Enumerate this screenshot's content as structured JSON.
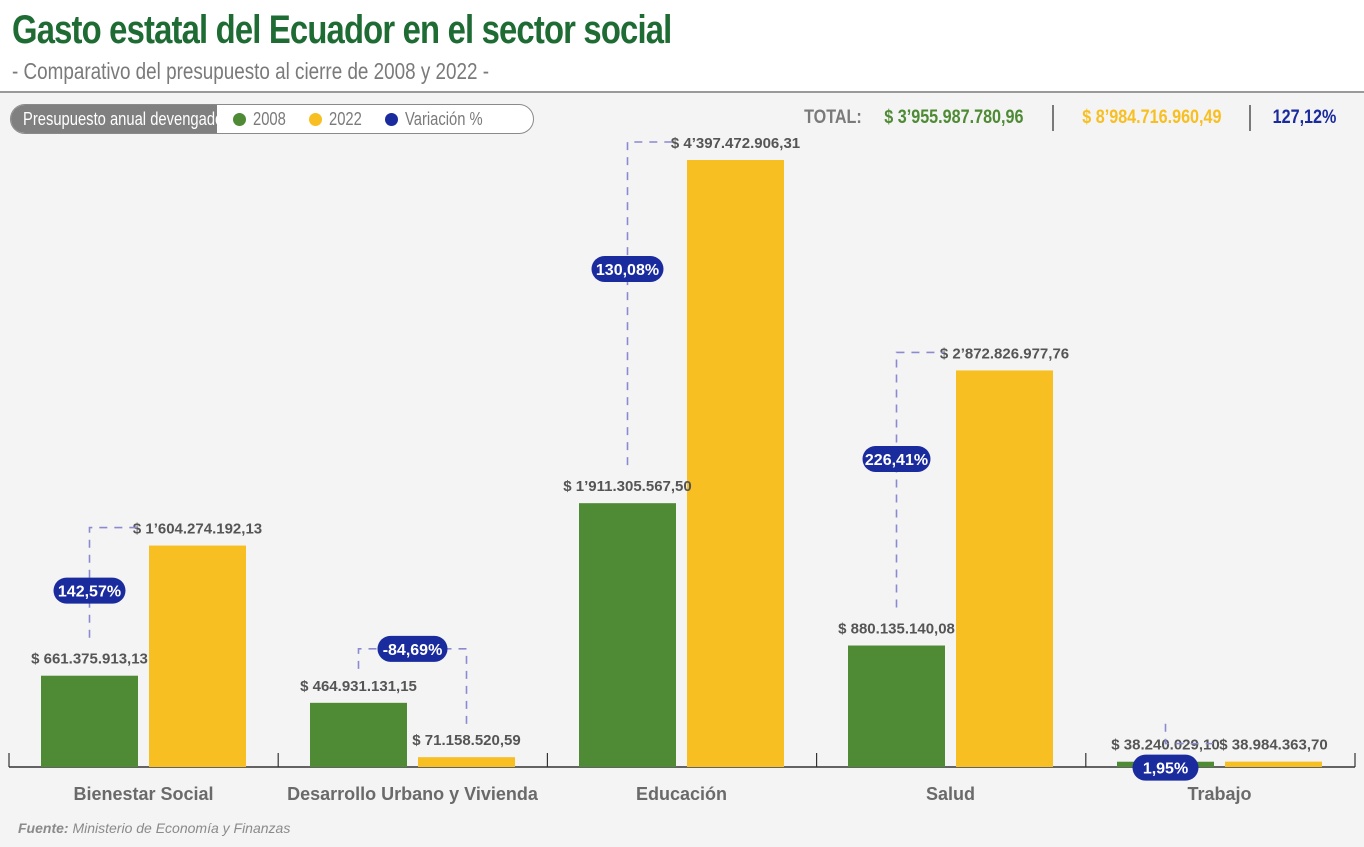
{
  "header": {
    "title": "Gasto estatal del Ecuador en el sector social",
    "subtitle": "- Comparativo del presupuesto al cierre de 2008 y 2022 -"
  },
  "legend": {
    "label": "Presupuesto anual devengado",
    "items": [
      {
        "label": "2008",
        "color": "#4f8a34"
      },
      {
        "label": "2022",
        "color": "#f8bf22"
      },
      {
        "label": "Variación %",
        "color": "#1a2b9e"
      }
    ]
  },
  "totals": {
    "label": "TOTAL:",
    "value_2008": "$ 3’955.987.780,96",
    "value_2022": "$ 8’984.716.960,49",
    "variation": "127,12%"
  },
  "chart_data": {
    "type": "bar",
    "categories": [
      "Bienestar Social",
      "Desarrollo Urbano y Vivienda",
      "Educación",
      "Salud",
      "Trabajo"
    ],
    "series": [
      {
        "name": "2008",
        "color": "#4f8a34",
        "values": [
          661375913.13,
          464931131.15,
          1911305567.5,
          880135140.08,
          38240029.1
        ],
        "labels": [
          "$ 661.375.913,13",
          "$ 464.931.131,15",
          "$ 1’911.305.567,50",
          "$ 880.135.140,08",
          "$ 38.240.029,10"
        ]
      },
      {
        "name": "2022",
        "color": "#f8bf22",
        "values": [
          1604274192.13,
          71158520.59,
          4397472906.31,
          2872826977.76,
          38984363.7
        ],
        "labels": [
          "$ 1’604.274.192,13",
          "$ 71.158.520,59",
          "$ 4’397.472.906,31",
          "$ 2’872.826.977,76",
          "$ 38.984.363,70"
        ]
      }
    ],
    "variation": [
      {
        "value": 142.57,
        "label": "142,57%"
      },
      {
        "value": -84.69,
        "label": "-84,69%"
      },
      {
        "value": 130.08,
        "label": "130,08%"
      },
      {
        "value": 226.41,
        "label": "226,41%"
      },
      {
        "value": 1.95,
        "label": "1,95%"
      }
    ],
    "ylim": [
      0,
      4500000000
    ],
    "grid": false,
    "legend_position": "top-left"
  },
  "source": {
    "label": "Fuente:",
    "text": "Ministerio de Economía y Finanzas"
  }
}
